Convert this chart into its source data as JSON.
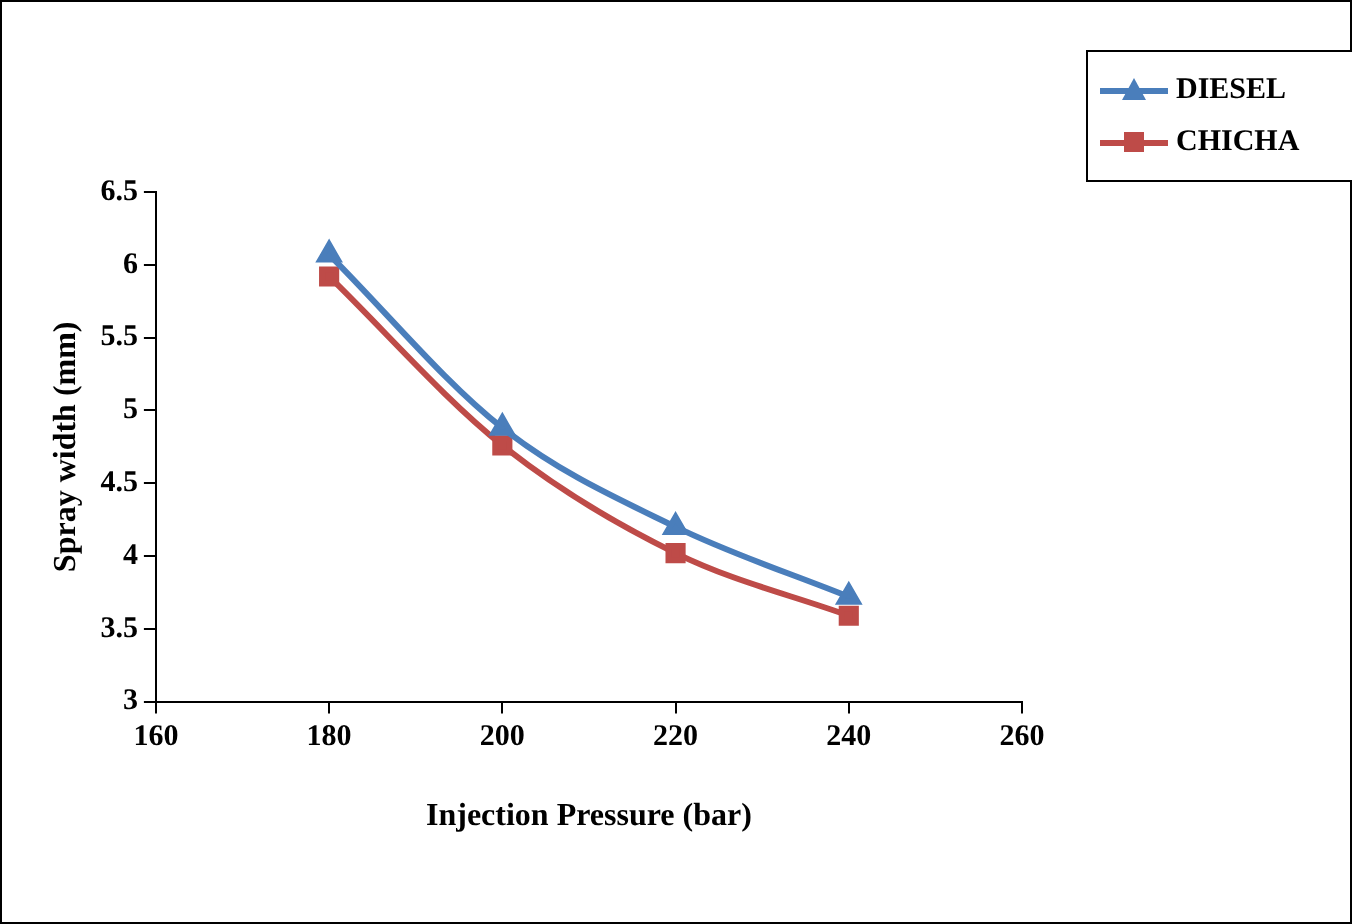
{
  "chart_data": {
    "type": "line",
    "xlabel": "Injection Pressure (bar)",
    "ylabel": "Spray width (mm)",
    "x": [
      180,
      200,
      220,
      240
    ],
    "series": [
      {
        "name": "DIESEL",
        "color": "#4a7ebb",
        "marker": "triangle",
        "values": [
          6.07,
          4.88,
          4.2,
          3.72
        ]
      },
      {
        "name": "CHICHA",
        "color": "#be4b48",
        "marker": "square",
        "values": [
          5.92,
          4.76,
          4.02,
          3.59
        ]
      }
    ],
    "xlim": [
      160,
      260
    ],
    "xticks": [
      160,
      180,
      200,
      220,
      240,
      260
    ],
    "ylim": [
      3,
      6.5
    ],
    "yticks": [
      3,
      3.5,
      4,
      4.5,
      5,
      5.5,
      6,
      6.5
    ],
    "grid": false,
    "legend": "top right",
    "line_style": "solid"
  }
}
